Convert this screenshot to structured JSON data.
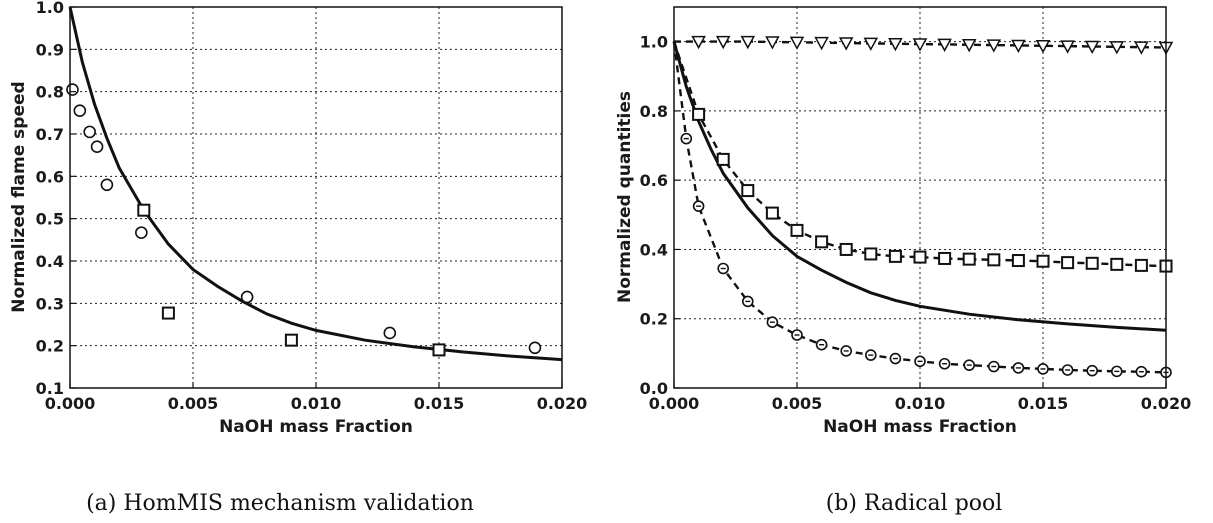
{
  "chart_data": [
    {
      "type": "scatter",
      "panel_caption": "(a) HomMIS mechanism validation",
      "xlabel": "NaOH mass Fraction",
      "ylabel": "Normalized flame speed",
      "xlim": [
        0.0,
        0.02
      ],
      "ylim": [
        0.1,
        1.0
      ],
      "x_ticks": [
        "0.000",
        "0.005",
        "0.010",
        "0.015",
        "0.020"
      ],
      "y_ticks": [
        "0.1",
        "0.2",
        "0.3",
        "0.4",
        "0.5",
        "0.6",
        "0.7",
        "0.8",
        "0.9",
        "1.0"
      ],
      "grid": true,
      "series": [
        {
          "style": "solid-line",
          "points": [
            [
              0.0,
              1.0
            ],
            [
              0.0005,
              0.87
            ],
            [
              0.001,
              0.77
            ],
            [
              0.0015,
              0.69
            ],
            [
              0.002,
              0.62
            ],
            [
              0.003,
              0.52
            ],
            [
              0.004,
              0.44
            ],
            [
              0.005,
              0.38
            ],
            [
              0.006,
              0.34
            ],
            [
              0.007,
              0.305
            ],
            [
              0.008,
              0.275
            ],
            [
              0.009,
              0.253
            ],
            [
              0.01,
              0.236
            ],
            [
              0.012,
              0.213
            ],
            [
              0.014,
              0.197
            ],
            [
              0.016,
              0.185
            ],
            [
              0.018,
              0.175
            ],
            [
              0.02,
              0.167
            ]
          ]
        },
        {
          "marker": "circle",
          "points": [
            [
              0.0001,
              0.805
            ],
            [
              0.0004,
              0.755
            ],
            [
              0.0008,
              0.705
            ],
            [
              0.0011,
              0.67
            ],
            [
              0.0015,
              0.58
            ],
            [
              0.0029,
              0.467
            ],
            [
              0.0072,
              0.315
            ],
            [
              0.013,
              0.23
            ],
            [
              0.0189,
              0.195
            ]
          ]
        },
        {
          "marker": "square",
          "points": [
            [
              0.003,
              0.52
            ],
            [
              0.004,
              0.277
            ],
            [
              0.009,
              0.213
            ],
            [
              0.015,
              0.19
            ]
          ]
        }
      ]
    },
    {
      "type": "line",
      "panel_caption": "(b) Radical pool",
      "xlabel": "NaOH mass Fraction",
      "ylabel": "Normalized quantities",
      "xlim": [
        0.0,
        0.02
      ],
      "ylim": [
        0.0,
        1.1
      ],
      "x_ticks": [
        "0.000",
        "0.005",
        "0.010",
        "0.015",
        "0.020"
      ],
      "y_ticks": [
        "0.0",
        "0.2",
        "0.4",
        "0.6",
        "0.8",
        "1.0"
      ],
      "grid": true,
      "series": [
        {
          "style": "solid-line",
          "points": [
            [
              0.0,
              1.0
            ],
            [
              0.0005,
              0.87
            ],
            [
              0.001,
              0.77
            ],
            [
              0.0015,
              0.69
            ],
            [
              0.002,
              0.62
            ],
            [
              0.003,
              0.52
            ],
            [
              0.004,
              0.44
            ],
            [
              0.005,
              0.38
            ],
            [
              0.006,
              0.34
            ],
            [
              0.007,
              0.305
            ],
            [
              0.008,
              0.275
            ],
            [
              0.009,
              0.253
            ],
            [
              0.01,
              0.236
            ],
            [
              0.012,
              0.213
            ],
            [
              0.014,
              0.197
            ],
            [
              0.016,
              0.185
            ],
            [
              0.018,
              0.175
            ],
            [
              0.02,
              0.167
            ]
          ]
        },
        {
          "style": "dashed-line",
          "marker": "triangle-down",
          "points": [
            [
              0.0,
              1.0
            ],
            [
              0.001,
              1.0
            ],
            [
              0.002,
              1.0
            ],
            [
              0.003,
              1.0
            ],
            [
              0.004,
              0.999
            ],
            [
              0.005,
              0.998
            ],
            [
              0.006,
              0.997
            ],
            [
              0.007,
              0.996
            ],
            [
              0.008,
              0.995
            ],
            [
              0.009,
              0.994
            ],
            [
              0.01,
              0.993
            ],
            [
              0.011,
              0.992
            ],
            [
              0.012,
              0.991
            ],
            [
              0.013,
              0.99
            ],
            [
              0.014,
              0.989
            ],
            [
              0.015,
              0.988
            ],
            [
              0.016,
              0.987
            ],
            [
              0.017,
              0.986
            ],
            [
              0.018,
              0.985
            ],
            [
              0.019,
              0.984
            ],
            [
              0.02,
              0.983
            ]
          ]
        },
        {
          "style": "dashed-line",
          "marker": "square",
          "points": [
            [
              0.0,
              1.0
            ],
            [
              0.001,
              0.79
            ],
            [
              0.002,
              0.66
            ],
            [
              0.003,
              0.57
            ],
            [
              0.004,
              0.505
            ],
            [
              0.005,
              0.455
            ],
            [
              0.006,
              0.422
            ],
            [
              0.007,
              0.4
            ],
            [
              0.008,
              0.387
            ],
            [
              0.009,
              0.38
            ],
            [
              0.01,
              0.378
            ],
            [
              0.011,
              0.374
            ],
            [
              0.012,
              0.372
            ],
            [
              0.013,
              0.37
            ],
            [
              0.014,
              0.368
            ],
            [
              0.015,
              0.366
            ],
            [
              0.016,
              0.362
            ],
            [
              0.017,
              0.36
            ],
            [
              0.018,
              0.357
            ],
            [
              0.019,
              0.354
            ],
            [
              0.02,
              0.352
            ]
          ]
        },
        {
          "style": "dashed-line",
          "marker": "circle-dot",
          "points": [
            [
              0.0,
              1.0
            ],
            [
              0.0005,
              0.72
            ],
            [
              0.001,
              0.525
            ],
            [
              0.002,
              0.345
            ],
            [
              0.003,
              0.25
            ],
            [
              0.004,
              0.19
            ],
            [
              0.005,
              0.153
            ],
            [
              0.006,
              0.125
            ],
            [
              0.007,
              0.107
            ],
            [
              0.008,
              0.095
            ],
            [
              0.009,
              0.085
            ],
            [
              0.01,
              0.077
            ],
            [
              0.011,
              0.07
            ],
            [
              0.012,
              0.066
            ],
            [
              0.013,
              0.062
            ],
            [
              0.014,
              0.058
            ],
            [
              0.015,
              0.055
            ],
            [
              0.016,
              0.052
            ],
            [
              0.017,
              0.05
            ],
            [
              0.018,
              0.048
            ],
            [
              0.019,
              0.047
            ],
            [
              0.02,
              0.045
            ]
          ]
        }
      ]
    }
  ]
}
